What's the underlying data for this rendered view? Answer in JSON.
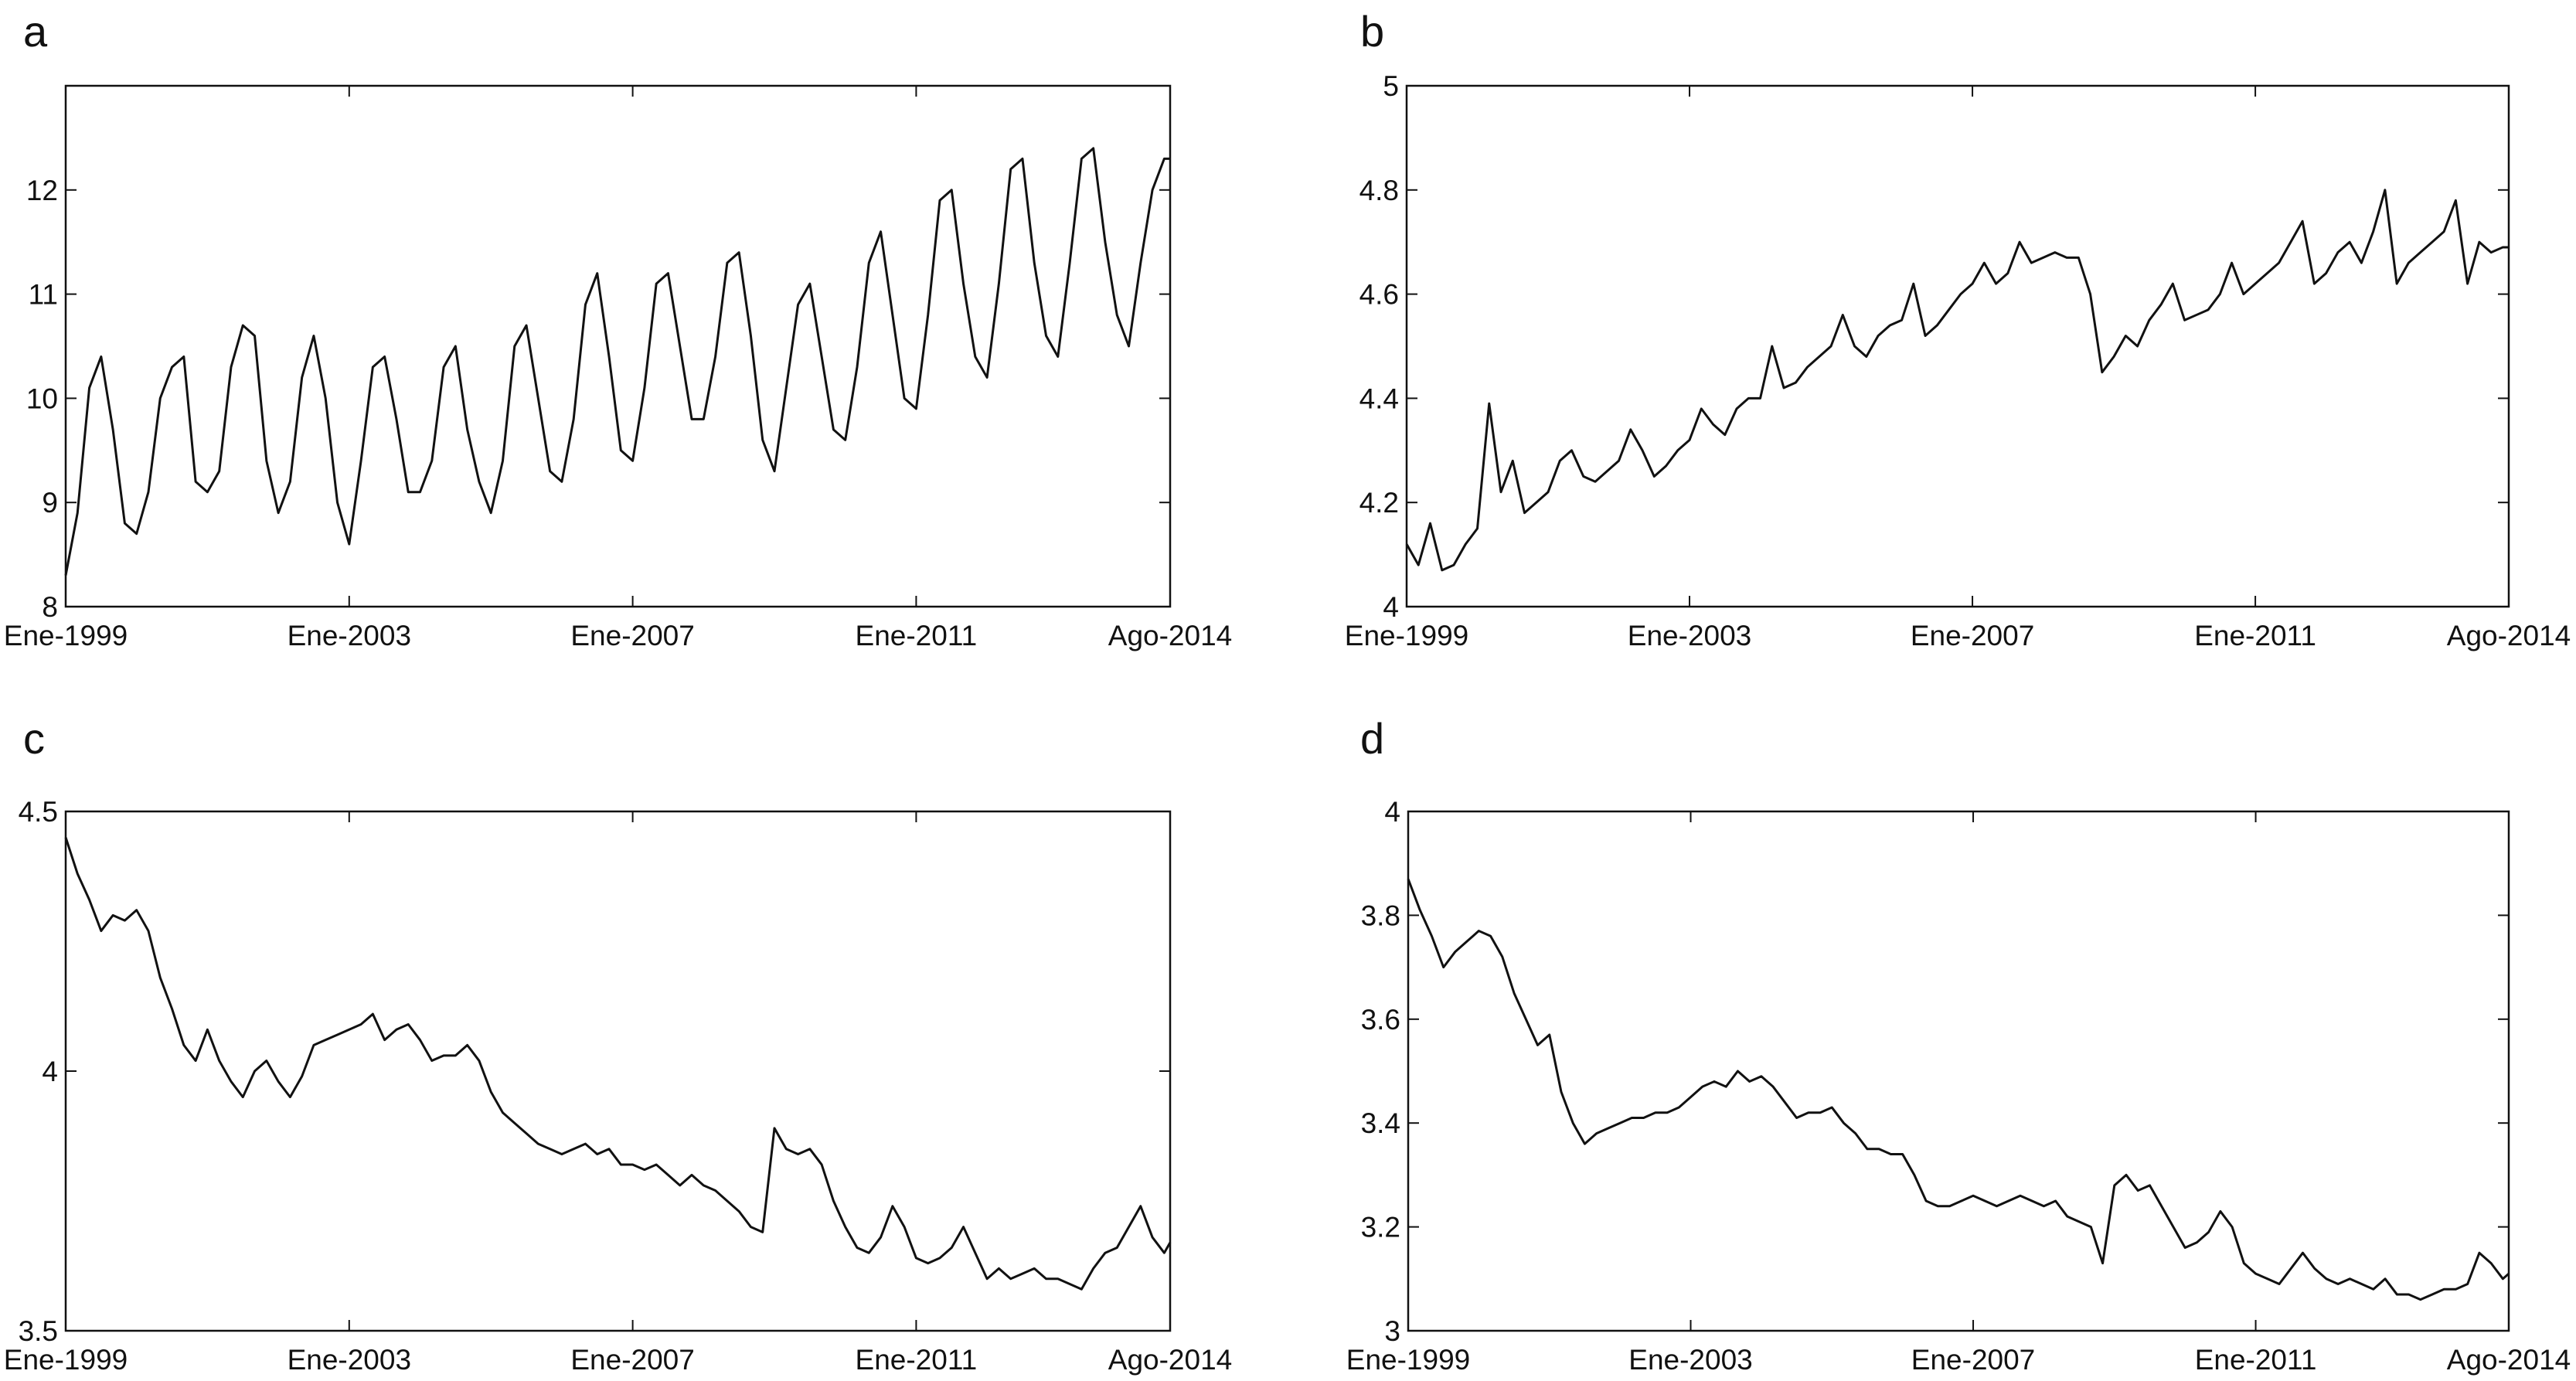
{
  "chart_data": [
    {
      "type": "line",
      "title": "a",
      "color": "#111111",
      "x": [
        "1999-01",
        "1999-03",
        "1999-05",
        "1999-07",
        "1999-09",
        "1999-11",
        "2000-01",
        "2000-03",
        "2000-05",
        "2000-07",
        "2000-09",
        "2000-11",
        "2001-01",
        "2001-03",
        "2001-05",
        "2001-07",
        "2001-09",
        "2001-11",
        "2002-01",
        "2002-03",
        "2002-05",
        "2002-07",
        "2002-09",
        "2002-11",
        "2003-01",
        "2003-03",
        "2003-05",
        "2003-07",
        "2003-09",
        "2003-11",
        "2004-01",
        "2004-03",
        "2004-05",
        "2004-07",
        "2004-09",
        "2004-11",
        "2005-01",
        "2005-03",
        "2005-05",
        "2005-07",
        "2005-09",
        "2005-11",
        "2006-01",
        "2006-03",
        "2006-05",
        "2006-07",
        "2006-09",
        "2006-11",
        "2007-01",
        "2007-03",
        "2007-05",
        "2007-07",
        "2007-09",
        "2007-11",
        "2008-01",
        "2008-03",
        "2008-05",
        "2008-07",
        "2008-09",
        "2008-11",
        "2009-01",
        "2009-03",
        "2009-05",
        "2009-07",
        "2009-09",
        "2009-11",
        "2010-01",
        "2010-03",
        "2010-05",
        "2010-07",
        "2010-09",
        "2010-11",
        "2011-01",
        "2011-03",
        "2011-05",
        "2011-07",
        "2011-09",
        "2011-11",
        "2012-01",
        "2012-03",
        "2012-05",
        "2012-07",
        "2012-09",
        "2012-11",
        "2013-01",
        "2013-03",
        "2013-05",
        "2013-07",
        "2013-09",
        "2013-11",
        "2014-01",
        "2014-03",
        "2014-05",
        "2014-07",
        "2014-08"
      ],
      "values": [
        8.3,
        8.9,
        10.1,
        10.4,
        9.7,
        8.8,
        8.7,
        9.1,
        10.0,
        10.3,
        10.4,
        9.2,
        9.1,
        9.3,
        10.3,
        10.7,
        10.6,
        9.4,
        8.9,
        9.2,
        10.2,
        10.6,
        10.0,
        9.0,
        8.6,
        9.4,
        10.3,
        10.4,
        9.8,
        9.1,
        9.1,
        9.4,
        10.3,
        10.5,
        9.7,
        9.2,
        8.9,
        9.4,
        10.5,
        10.7,
        10.0,
        9.3,
        9.2,
        9.8,
        10.9,
        11.2,
        10.4,
        9.5,
        9.4,
        10.1,
        11.1,
        11.2,
        10.5,
        9.8,
        9.8,
        10.4,
        11.3,
        11.4,
        10.6,
        9.6,
        9.3,
        10.1,
        10.9,
        11.1,
        10.4,
        9.7,
        9.6,
        10.3,
        11.3,
        11.6,
        10.8,
        10.0,
        9.9,
        10.8,
        11.9,
        12.0,
        11.1,
        10.4,
        10.2,
        11.1,
        12.2,
        12.3,
        11.3,
        10.6,
        10.4,
        11.3,
        12.3,
        12.4,
        11.5,
        10.8,
        10.5,
        11.3,
        12.0,
        12.3,
        12.3
      ],
      "xlim": [
        "1999-01",
        "2014-08"
      ],
      "xticks": [
        {
          "value": "1999-01",
          "label": "Ene-1999"
        },
        {
          "value": "2003-01",
          "label": "Ene-2003"
        },
        {
          "value": "2007-01",
          "label": "Ene-2007"
        },
        {
          "value": "2011-01",
          "label": "Ene-2011"
        },
        {
          "value": "2014-08",
          "label": "Ago-2014"
        }
      ],
      "ylim": [
        8,
        13
      ],
      "yticks": [
        8,
        9,
        10,
        11,
        12
      ]
    },
    {
      "type": "line",
      "title": "b",
      "color": "#111111",
      "x": [
        "1999-01",
        "1999-03",
        "1999-05",
        "1999-07",
        "1999-09",
        "1999-11",
        "2000-01",
        "2000-03",
        "2000-05",
        "2000-07",
        "2000-09",
        "2000-11",
        "2001-01",
        "2001-03",
        "2001-05",
        "2001-07",
        "2001-09",
        "2001-11",
        "2002-01",
        "2002-03",
        "2002-05",
        "2002-07",
        "2002-09",
        "2002-11",
        "2003-01",
        "2003-03",
        "2003-05",
        "2003-07",
        "2003-09",
        "2003-11",
        "2004-01",
        "2004-03",
        "2004-05",
        "2004-07",
        "2004-09",
        "2004-11",
        "2005-01",
        "2005-03",
        "2005-05",
        "2005-07",
        "2005-09",
        "2005-11",
        "2006-01",
        "2006-03",
        "2006-05",
        "2006-07",
        "2006-09",
        "2006-11",
        "2007-01",
        "2007-03",
        "2007-05",
        "2007-07",
        "2007-09",
        "2007-11",
        "2008-01",
        "2008-03",
        "2008-05",
        "2008-07",
        "2008-09",
        "2008-11",
        "2009-01",
        "2009-03",
        "2009-05",
        "2009-07",
        "2009-09",
        "2009-11",
        "2010-01",
        "2010-03",
        "2010-05",
        "2010-07",
        "2010-09",
        "2010-11",
        "2011-01",
        "2011-03",
        "2011-05",
        "2011-07",
        "2011-09",
        "2011-11",
        "2012-01",
        "2012-03",
        "2012-05",
        "2012-07",
        "2012-09",
        "2012-11",
        "2013-01",
        "2013-03",
        "2013-05",
        "2013-07",
        "2013-09",
        "2013-11",
        "2014-01",
        "2014-03",
        "2014-05",
        "2014-07",
        "2014-08"
      ],
      "values": [
        4.12,
        4.08,
        4.16,
        4.07,
        4.08,
        4.12,
        4.15,
        4.39,
        4.22,
        4.28,
        4.18,
        4.2,
        4.22,
        4.28,
        4.3,
        4.25,
        4.24,
        4.26,
        4.28,
        4.34,
        4.3,
        4.25,
        4.27,
        4.3,
        4.32,
        4.38,
        4.35,
        4.33,
        4.38,
        4.4,
        4.4,
        4.5,
        4.42,
        4.43,
        4.46,
        4.48,
        4.5,
        4.56,
        4.5,
        4.48,
        4.52,
        4.54,
        4.55,
        4.62,
        4.52,
        4.54,
        4.57,
        4.6,
        4.62,
        4.66,
        4.62,
        4.64,
        4.7,
        4.66,
        4.67,
        4.68,
        4.67,
        4.67,
        4.6,
        4.45,
        4.48,
        4.52,
        4.5,
        4.55,
        4.58,
        4.62,
        4.55,
        4.56,
        4.57,
        4.6,
        4.66,
        4.6,
        4.62,
        4.64,
        4.66,
        4.7,
        4.74,
        4.62,
        4.64,
        4.68,
        4.7,
        4.66,
        4.72,
        4.8,
        4.62,
        4.66,
        4.68,
        4.7,
        4.72,
        4.78,
        4.62,
        4.7,
        4.68,
        4.69,
        4.69
      ],
      "xlim": [
        "1999-01",
        "2014-08"
      ],
      "xticks": [
        {
          "value": "1999-01",
          "label": "Ene-1999"
        },
        {
          "value": "2003-01",
          "label": "Ene-2003"
        },
        {
          "value": "2007-01",
          "label": "Ene-2007"
        },
        {
          "value": "2011-01",
          "label": "Ene-2011"
        },
        {
          "value": "2014-08",
          "label": "Ago-2014"
        }
      ],
      "ylim": [
        4,
        5
      ],
      "yticks": [
        4,
        4.2,
        4.4,
        4.6,
        4.8,
        5
      ]
    },
    {
      "type": "line",
      "title": "c",
      "color": "#111111",
      "x": [
        "1999-01",
        "1999-03",
        "1999-05",
        "1999-07",
        "1999-09",
        "1999-11",
        "2000-01",
        "2000-03",
        "2000-05",
        "2000-07",
        "2000-09",
        "2000-11",
        "2001-01",
        "2001-03",
        "2001-05",
        "2001-07",
        "2001-09",
        "2001-11",
        "2002-01",
        "2002-03",
        "2002-05",
        "2002-07",
        "2002-09",
        "2002-11",
        "2003-01",
        "2003-03",
        "2003-05",
        "2003-07",
        "2003-09",
        "2003-11",
        "2004-01",
        "2004-03",
        "2004-05",
        "2004-07",
        "2004-09",
        "2004-11",
        "2005-01",
        "2005-03",
        "2005-05",
        "2005-07",
        "2005-09",
        "2005-11",
        "2006-01",
        "2006-03",
        "2006-05",
        "2006-07",
        "2006-09",
        "2006-11",
        "2007-01",
        "2007-03",
        "2007-05",
        "2007-07",
        "2007-09",
        "2007-11",
        "2008-01",
        "2008-03",
        "2008-05",
        "2008-07",
        "2008-09",
        "2008-11",
        "2009-01",
        "2009-03",
        "2009-05",
        "2009-07",
        "2009-09",
        "2009-11",
        "2010-01",
        "2010-03",
        "2010-05",
        "2010-07",
        "2010-09",
        "2010-11",
        "2011-01",
        "2011-03",
        "2011-05",
        "2011-07",
        "2011-09",
        "2011-11",
        "2012-01",
        "2012-03",
        "2012-05",
        "2012-07",
        "2012-09",
        "2012-11",
        "2013-01",
        "2013-03",
        "2013-05",
        "2013-07",
        "2013-09",
        "2013-11",
        "2014-01",
        "2014-03",
        "2014-05",
        "2014-07",
        "2014-08"
      ],
      "values": [
        4.45,
        4.38,
        4.33,
        4.27,
        4.3,
        4.29,
        4.31,
        4.27,
        4.18,
        4.12,
        4.05,
        4.02,
        4.08,
        4.02,
        3.98,
        3.95,
        4.0,
        4.02,
        3.98,
        3.95,
        3.99,
        4.05,
        4.06,
        4.07,
        4.08,
        4.09,
        4.11,
        4.06,
        4.08,
        4.09,
        4.06,
        4.02,
        4.03,
        4.03,
        4.05,
        4.02,
        3.96,
        3.92,
        3.9,
        3.88,
        3.86,
        3.85,
        3.84,
        3.85,
        3.86,
        3.84,
        3.85,
        3.82,
        3.82,
        3.81,
        3.82,
        3.8,
        3.78,
        3.8,
        3.78,
        3.77,
        3.75,
        3.73,
        3.7,
        3.69,
        3.89,
        3.85,
        3.84,
        3.85,
        3.82,
        3.75,
        3.7,
        3.66,
        3.65,
        3.68,
        3.74,
        3.7,
        3.64,
        3.63,
        3.64,
        3.66,
        3.7,
        3.65,
        3.6,
        3.62,
        3.6,
        3.61,
        3.62,
        3.6,
        3.6,
        3.59,
        3.58,
        3.62,
        3.65,
        3.66,
        3.7,
        3.74,
        3.68,
        3.65,
        3.67
      ],
      "xlim": [
        "1999-01",
        "2014-08"
      ],
      "xticks": [
        {
          "value": "1999-01",
          "label": "Ene-1999"
        },
        {
          "value": "2003-01",
          "label": "Ene-2003"
        },
        {
          "value": "2007-01",
          "label": "Ene-2007"
        },
        {
          "value": "2011-01",
          "label": "Ene-2011"
        },
        {
          "value": "2014-08",
          "label": "Ago-2014"
        }
      ],
      "ylim": [
        3.5,
        4.5
      ],
      "yticks": [
        3.5,
        4,
        4.5
      ]
    },
    {
      "type": "line",
      "title": "d",
      "color": "#111111",
      "x": [
        "1999-01",
        "1999-03",
        "1999-05",
        "1999-07",
        "1999-09",
        "1999-11",
        "2000-01",
        "2000-03",
        "2000-05",
        "2000-07",
        "2000-09",
        "2000-11",
        "2001-01",
        "2001-03",
        "2001-05",
        "2001-07",
        "2001-09",
        "2001-11",
        "2002-01",
        "2002-03",
        "2002-05",
        "2002-07",
        "2002-09",
        "2002-11",
        "2003-01",
        "2003-03",
        "2003-05",
        "2003-07",
        "2003-09",
        "2003-11",
        "2004-01",
        "2004-03",
        "2004-05",
        "2004-07",
        "2004-09",
        "2004-11",
        "2005-01",
        "2005-03",
        "2005-05",
        "2005-07",
        "2005-09",
        "2005-11",
        "2006-01",
        "2006-03",
        "2006-05",
        "2006-07",
        "2006-09",
        "2006-11",
        "2007-01",
        "2007-03",
        "2007-05",
        "2007-07",
        "2007-09",
        "2007-11",
        "2008-01",
        "2008-03",
        "2008-05",
        "2008-07",
        "2008-09",
        "2008-11",
        "2009-01",
        "2009-03",
        "2009-05",
        "2009-07",
        "2009-09",
        "2009-11",
        "2010-01",
        "2010-03",
        "2010-05",
        "2010-07",
        "2010-09",
        "2010-11",
        "2011-01",
        "2011-03",
        "2011-05",
        "2011-07",
        "2011-09",
        "2011-11",
        "2012-01",
        "2012-03",
        "2012-05",
        "2012-07",
        "2012-09",
        "2012-11",
        "2013-01",
        "2013-03",
        "2013-05",
        "2013-07",
        "2013-09",
        "2013-11",
        "2014-01",
        "2014-03",
        "2014-05",
        "2014-07",
        "2014-08"
      ],
      "values": [
        3.87,
        3.81,
        3.76,
        3.7,
        3.73,
        3.75,
        3.77,
        3.76,
        3.72,
        3.65,
        3.6,
        3.55,
        3.57,
        3.46,
        3.4,
        3.36,
        3.38,
        3.39,
        3.4,
        3.41,
        3.41,
        3.42,
        3.42,
        3.43,
        3.45,
        3.47,
        3.48,
        3.47,
        3.5,
        3.48,
        3.49,
        3.47,
        3.44,
        3.41,
        3.42,
        3.42,
        3.43,
        3.4,
        3.38,
        3.35,
        3.35,
        3.34,
        3.34,
        3.3,
        3.25,
        3.24,
        3.24,
        3.25,
        3.26,
        3.25,
        3.24,
        3.25,
        3.26,
        3.25,
        3.24,
        3.25,
        3.22,
        3.21,
        3.2,
        3.13,
        3.28,
        3.3,
        3.27,
        3.28,
        3.24,
        3.2,
        3.16,
        3.17,
        3.19,
        3.23,
        3.2,
        3.13,
        3.11,
        3.1,
        3.09,
        3.12,
        3.15,
        3.12,
        3.1,
        3.09,
        3.1,
        3.09,
        3.08,
        3.1,
        3.07,
        3.07,
        3.06,
        3.07,
        3.08,
        3.08,
        3.09,
        3.15,
        3.13,
        3.1,
        3.11
      ],
      "xlim": [
        "1999-01",
        "2014-08"
      ],
      "xticks": [
        {
          "value": "1999-01",
          "label": "Ene-1999"
        },
        {
          "value": "2003-01",
          "label": "Ene-2003"
        },
        {
          "value": "2007-01",
          "label": "Ene-2007"
        },
        {
          "value": "2011-01",
          "label": "Ene-2011"
        },
        {
          "value": "2014-08",
          "label": "Ago-2014"
        }
      ],
      "ylim": [
        3,
        4
      ],
      "yticks": [
        3,
        3.2,
        3.4,
        3.6,
        3.8,
        4
      ]
    }
  ]
}
